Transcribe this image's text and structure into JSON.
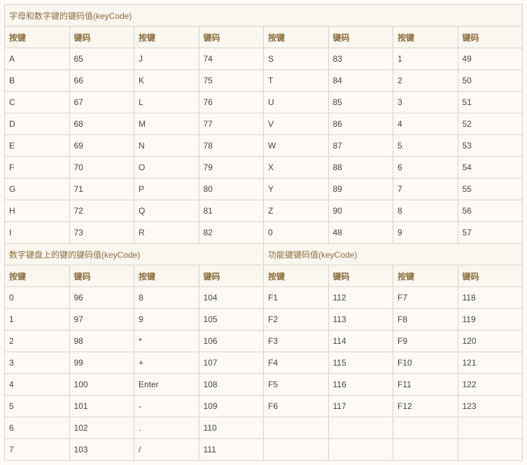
{
  "colors": {
    "border": "#d8d4cc",
    "header_text": "#8a6d3b",
    "body_text": "#444444",
    "bg": "#fdfaf6",
    "header_bg": "#faf6f0"
  },
  "labels": {
    "key": "按键",
    "code": "键码"
  },
  "section1": {
    "title": "字母和数字键的键码值(keyCode)",
    "rows": [
      [
        "A",
        "65",
        "J",
        "74",
        "S",
        "83",
        "1",
        "49"
      ],
      [
        "B",
        "66",
        "K",
        "75",
        "T",
        "84",
        "2",
        "50"
      ],
      [
        "C",
        "67",
        "L",
        "76",
        "U",
        "85",
        "3",
        "51"
      ],
      [
        "D",
        "68",
        "M",
        "77",
        "V",
        "86",
        "4",
        "52"
      ],
      [
        "E",
        "69",
        "N",
        "78",
        "W",
        "87",
        "5",
        "53"
      ],
      [
        "F",
        "70",
        "O",
        "79",
        "X",
        "88",
        "6",
        "54"
      ],
      [
        "G",
        "71",
        "P",
        "80",
        "Y",
        "89",
        "7",
        "55"
      ],
      [
        "H",
        "72",
        "Q",
        "81",
        "Z",
        "90",
        "8",
        "56"
      ],
      [
        "I",
        "73",
        "R",
        "82",
        "0",
        "48",
        "9",
        "57"
      ]
    ]
  },
  "section2": {
    "title": "数字键盘上的键的键码值(keyCode)",
    "rows": [
      [
        "0",
        "96",
        "8",
        "104"
      ],
      [
        "1",
        "97",
        "9",
        "105"
      ],
      [
        "2",
        "98",
        "*",
        "106"
      ],
      [
        "3",
        "99",
        "+",
        "107"
      ],
      [
        "4",
        "100",
        "Enter",
        "108"
      ],
      [
        "5",
        "101",
        "-",
        "109"
      ],
      [
        "6",
        "102",
        ".",
        "110"
      ],
      [
        "7",
        "103",
        "/",
        "111"
      ]
    ]
  },
  "section3": {
    "title": "功能键键码值(keyCode)",
    "rows": [
      [
        "F1",
        "112",
        "F7",
        "118"
      ],
      [
        "F2",
        "113",
        "F8",
        "119"
      ],
      [
        "F3",
        "114",
        "F9",
        "120"
      ],
      [
        "F4",
        "115",
        "F10",
        "121"
      ],
      [
        "F5",
        "116",
        "F11",
        "122"
      ],
      [
        "F6",
        "117",
        "F12",
        "123"
      ],
      [
        "",
        "",
        "",
        ""
      ],
      [
        "",
        "",
        "",
        ""
      ]
    ]
  }
}
